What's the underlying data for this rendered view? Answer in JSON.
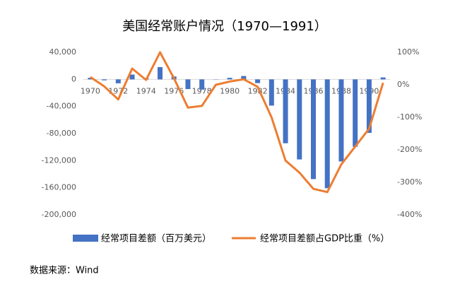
{
  "chart_data": {
    "type": "bar-line",
    "title": "美国经常账户情况（1970—1991）",
    "categories": [
      "1970",
      null,
      "1972",
      null,
      "1974",
      null,
      "1976",
      null,
      "1978",
      null,
      "1980",
      null,
      "1982",
      null,
      "1984",
      null,
      "1986",
      null,
      "1988",
      null,
      "1990",
      null
    ],
    "series": [
      {
        "name": "经常项目差额（百万美元）",
        "type": "bar",
        "color": "#4472c4",
        "values": [
          2300,
          -1400,
          -5800,
          7100,
          2000,
          18100,
          4300,
          -14300,
          -15100,
          -300,
          2300,
          5000,
          -5500,
          -38700,
          -94300,
          -118200,
          -147200,
          -160700,
          -121200,
          -99500,
          -79000,
          2900
        ]
      },
      {
        "name": "经常项目差额占GDP比重（%）",
        "type": "line",
        "axis": "y2",
        "color": "#ed7d31",
        "values": [
          24,
          -5,
          -45,
          50,
          15,
          100,
          20,
          -70,
          -65,
          0,
          10,
          17,
          -6,
          -100,
          -233,
          -270,
          -320,
          -330,
          -245,
          -190,
          -135,
          6
        ]
      }
    ],
    "ylim": [
      -200000,
      40000
    ],
    "yticks": [
      {
        "value": 40000,
        "label": "40,000"
      },
      0,
      {
        "value": -40000,
        "label": "-40,000"
      },
      {
        "value": -80000,
        "label": "-80,000"
      },
      {
        "value": -120000,
        "label": "-120,000"
      },
      {
        "value": -160000,
        "label": "-160,000"
      },
      {
        "value": -200000,
        "label": "-200,000"
      }
    ],
    "y2lim": [
      -400,
      100
    ],
    "y2ticks": [
      {
        "value": 100,
        "label": "100%"
      },
      {
        "value": 0,
        "label": "0%"
      },
      {
        "value": -100,
        "label": "-100%"
      },
      {
        "value": -200,
        "label": "-200%"
      },
      {
        "value": -300,
        "label": "-300%"
      },
      {
        "value": -400,
        "label": "-400%"
      }
    ],
    "source": "数据来源：Wind"
  }
}
